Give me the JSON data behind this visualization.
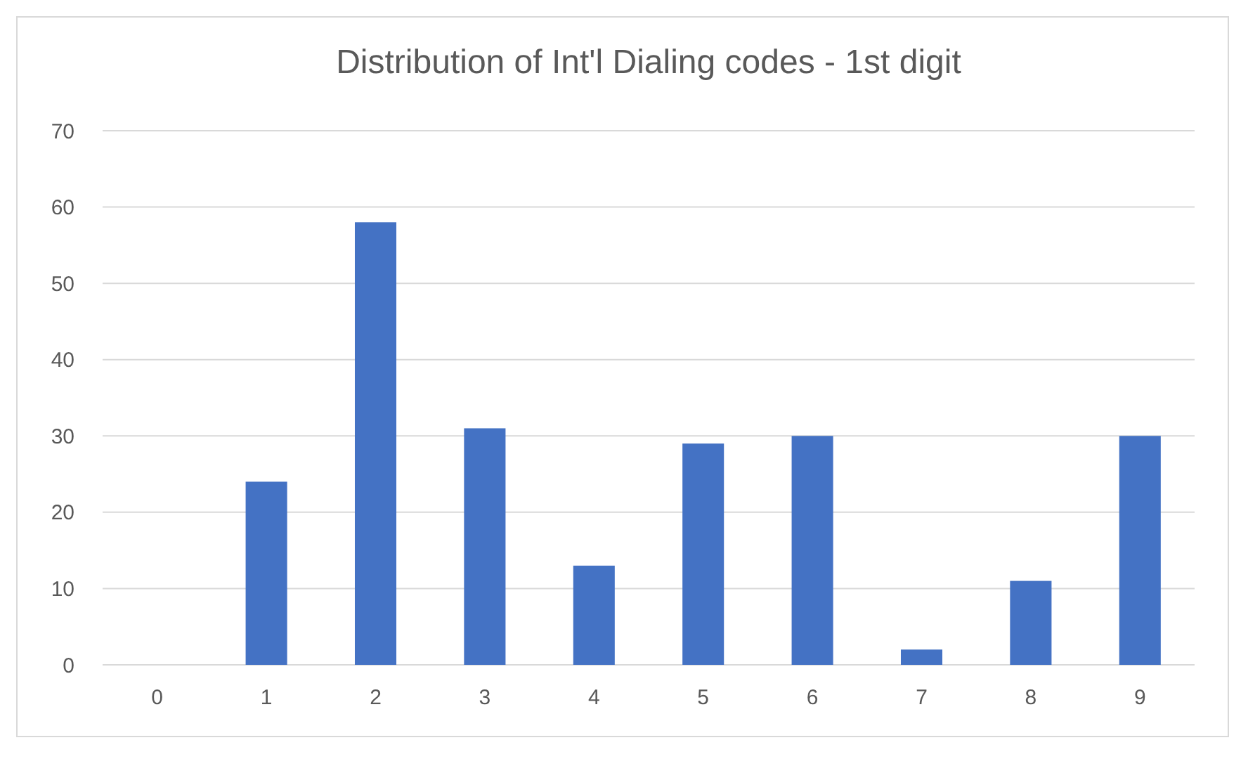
{
  "chart_data": {
    "type": "bar",
    "title": "Distribution of Int'l Dialing codes - 1st digit",
    "categories": [
      "0",
      "1",
      "2",
      "3",
      "4",
      "5",
      "6",
      "7",
      "8",
      "9"
    ],
    "values": [
      0,
      24,
      58,
      31,
      13,
      29,
      30,
      2,
      11,
      30
    ],
    "color": "#4472c4",
    "ylim": [
      0,
      70
    ],
    "yticks": [
      0,
      10,
      20,
      30,
      40,
      50,
      60,
      70
    ],
    "grid": "y"
  }
}
